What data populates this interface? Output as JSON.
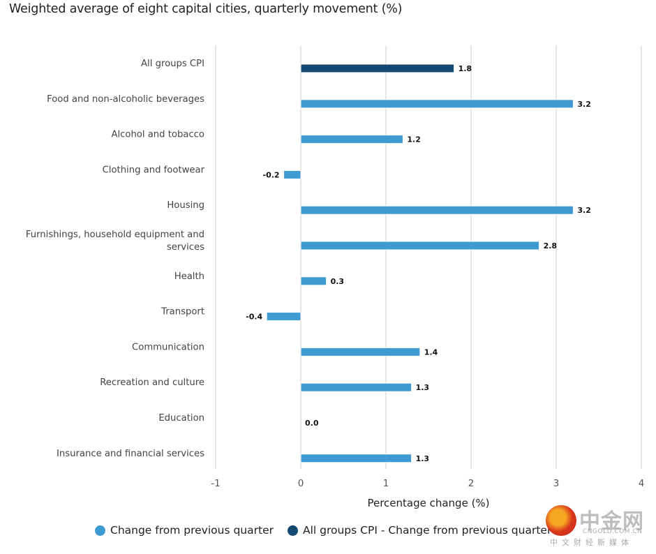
{
  "chart_data": {
    "type": "bar",
    "orientation": "horizontal",
    "title": "Weighted average of eight capital cities, quarterly movement (%)",
    "xlabel": "Percentage change (%)",
    "ylabel": "",
    "xlim": [
      -1,
      4
    ],
    "xticks": [
      -1,
      0,
      1,
      2,
      3,
      4
    ],
    "grid": true,
    "categories": [
      "All groups CPI",
      "Food and non-alcoholic beverages",
      "Alcohol and tobacco",
      "Clothing and footwear",
      "Housing",
      "Furnishings, household equipment and services",
      "Health",
      "Transport",
      "Communication",
      "Recreation and culture",
      "Education",
      "Insurance and financial services"
    ],
    "category_lines": [
      [
        "All groups CPI"
      ],
      [
        "Food and non-alcoholic beverages"
      ],
      [
        "Alcohol and tobacco"
      ],
      [
        "Clothing and footwear"
      ],
      [
        "Housing"
      ],
      [
        "Furnishings, household equipment and",
        "services"
      ],
      [
        "Health"
      ],
      [
        "Transport"
      ],
      [
        "Communication"
      ],
      [
        "Recreation and culture"
      ],
      [
        "Education"
      ],
      [
        "Insurance and financial services"
      ]
    ],
    "values": [
      1.8,
      3.2,
      1.2,
      -0.2,
      3.2,
      2.8,
      0.3,
      -0.4,
      1.4,
      1.3,
      0.0,
      1.3
    ],
    "value_labels": [
      "1.8",
      "3.2",
      "1.2",
      "-0.2",
      "3.2",
      "2.8",
      "0.3",
      "-0.4",
      "1.4",
      "1.3",
      "0.0",
      "1.3"
    ],
    "series_index": [
      1,
      0,
      0,
      0,
      0,
      0,
      0,
      0,
      0,
      0,
      0,
      0
    ],
    "series": [
      {
        "name": "Change from previous quarter",
        "color": "#3e9ad1"
      },
      {
        "name": "All groups CPI - Change from previous quarter",
        "color": "#154a70"
      }
    ],
    "legend_position": "bottom"
  },
  "watermark": {
    "brand_cn": "中金网",
    "brand_en": "CNGOLD.COM.CN",
    "tagline": "中文财经新媒体"
  }
}
